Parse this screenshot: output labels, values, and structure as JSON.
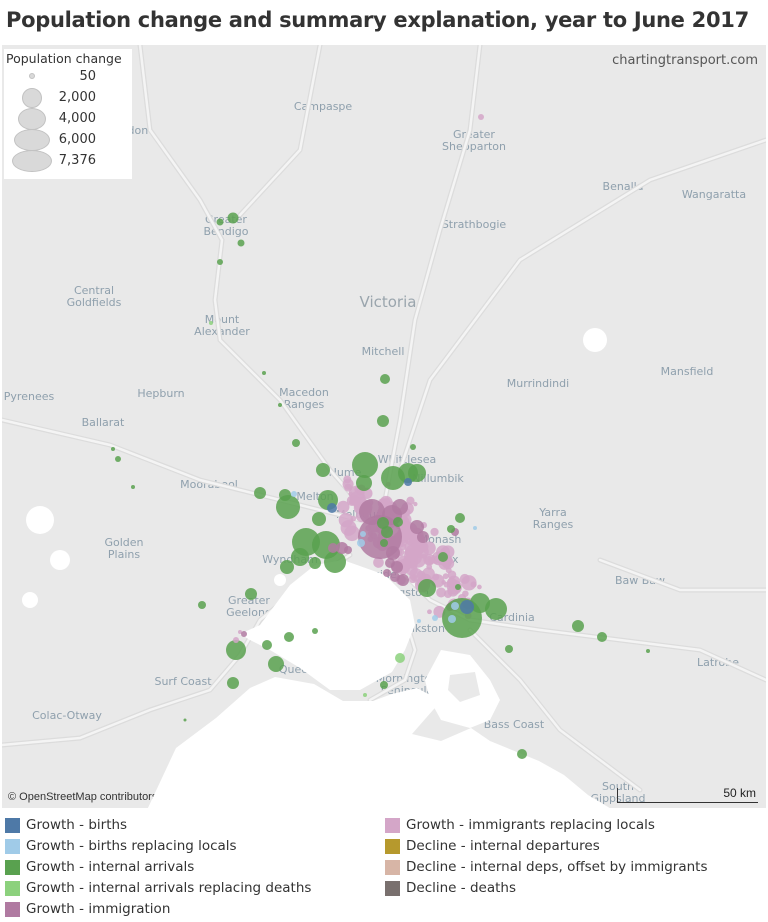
{
  "title": "Population change and summary explanation, year to June 2017",
  "watermark": "chartingtransport.com",
  "attribution": "© OpenStreetMap contributors",
  "scale_label": "50 km",
  "size_legend": {
    "title": "Population change",
    "values": [
      "50",
      "2,000",
      "4,000",
      "6,000",
      "7,376"
    ]
  },
  "color_legend": [
    {
      "label": "Growth - births",
      "color": "#4e79a7"
    },
    {
      "label": "Growth - births replacing locals",
      "color": "#a0cbe8"
    },
    {
      "label": "Growth - internal arrivals",
      "color": "#59a14f"
    },
    {
      "label": "Growth - internal arrivals replacing deaths",
      "color": "#8cd17d"
    },
    {
      "label": "Growth - immigration",
      "color": "#b07aa1"
    },
    {
      "label": "Growth - immigrants replacing locals",
      "color": "#d4a6c8"
    },
    {
      "label": "Decline - internal departures",
      "color": "#b6992d"
    },
    {
      "label": "Decline - internal deps, offset by immigrants",
      "color": "#d7b5a6"
    },
    {
      "label": "Decline - deaths",
      "color": "#79706e"
    }
  ],
  "regions": [
    "Campaspe",
    "Greater Shepparton",
    "Benalla",
    "Wangaratta",
    "Greater Bendigo",
    "Strathbogie",
    "Central Goldfields",
    "Victoria",
    "Mount Alexander",
    "Mitchell",
    "Mansfield",
    "Hepburn",
    "Macedon Ranges",
    "Murrindindi",
    "Pyrenees",
    "Ballarat",
    "Whittlesea",
    "Hume",
    "Nillumbik",
    "Moorabool",
    "Melton",
    "Yarra Ranges",
    "Golden Plains",
    "Knox",
    "Baw Baw",
    "Bayside",
    "Kingston",
    "Greater Geelong",
    "Cardinia",
    "Frankston",
    "Queenscliffe",
    "Latrobe",
    "Surf Coast",
    "Mornington Peninsula",
    "Colac-Otway",
    "Bass Coast",
    "South Gippsland",
    "Loddon",
    "Wyndham",
    "Melbourne",
    "Monash"
  ]
}
